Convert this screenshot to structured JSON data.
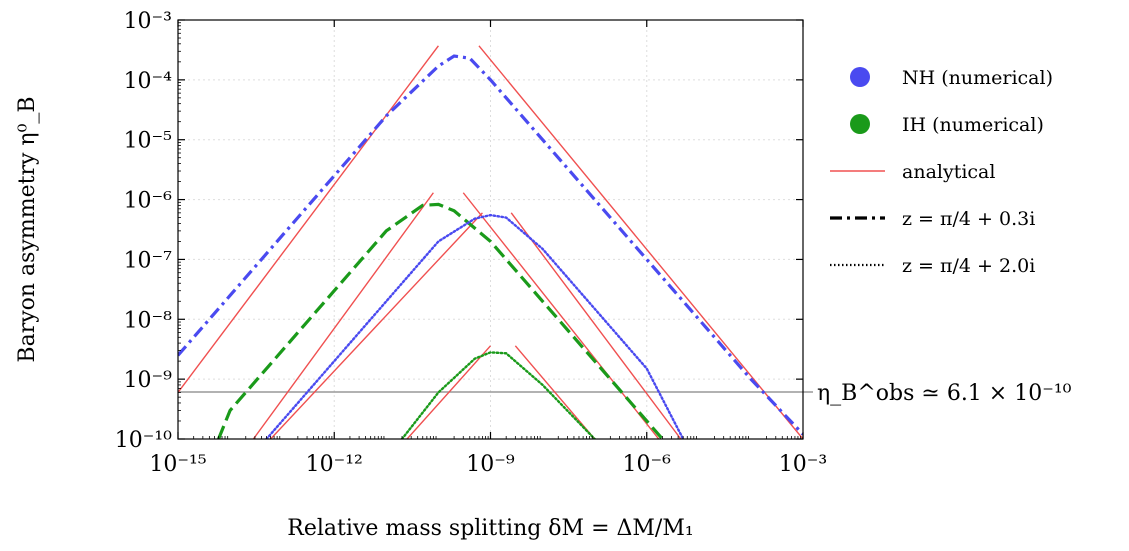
{
  "chart_data": {
    "type": "line",
    "xlabel": "Relative mass splitting δM = ΔM/M₁",
    "ylabel": "Baryon asymmetry η⁰_B",
    "x_scale": "log",
    "y_scale": "log",
    "xlim": [
      1e-15,
      0.001
    ],
    "ylim": [
      1e-10,
      0.001
    ],
    "x_ticks": [
      {
        "value": 1e-15,
        "label": "10⁻¹⁵"
      },
      {
        "value": 1e-12,
        "label": "10⁻¹²"
      },
      {
        "value": 1e-09,
        "label": "10⁻⁹"
      },
      {
        "value": 1e-06,
        "label": "10⁻⁶"
      },
      {
        "value": 0.001,
        "label": "10⁻³"
      }
    ],
    "y_ticks": [
      {
        "value": 1e-10,
        "label": "10⁻¹⁰"
      },
      {
        "value": 1e-09,
        "label": "10⁻⁹"
      },
      {
        "value": 1e-08,
        "label": "10⁻⁸"
      },
      {
        "value": 1e-07,
        "label": "10⁻⁷"
      },
      {
        "value": 1e-06,
        "label": "10⁻⁶"
      },
      {
        "value": 1e-05,
        "label": "10⁻⁵"
      },
      {
        "value": 0.0001,
        "label": "10⁻⁴"
      },
      {
        "value": 0.001,
        "label": "10⁻³"
      }
    ],
    "grid": true,
    "legend_position": "right",
    "colors": {
      "nh": "#4a4af0",
      "ih": "#1a9a1a",
      "analytical": "#f05050",
      "reference": "#999999"
    },
    "reference_line": {
      "y": 6.1e-10,
      "label": "η_B^obs ≃ 6.1 × 10⁻¹⁰"
    },
    "series": [
      {
        "name": "NH (numerical), z = π/4 + 0.3i",
        "style": "dashdot",
        "color": "#4a4af0",
        "points": [
          [
            1e-15,
            2.5e-09
          ],
          [
            1e-14,
            2.5e-08
          ],
          [
            1e-13,
            2.5e-07
          ],
          [
            1e-12,
            2.5e-06
          ],
          [
            1e-11,
            2.5e-05
          ],
          [
            1e-10,
            0.00017
          ],
          [
            2e-10,
            0.00025
          ],
          [
            4e-10,
            0.00023
          ],
          [
            1e-09,
            0.0001
          ],
          [
            1e-08,
            1e-05
          ],
          [
            1e-07,
            1e-06
          ],
          [
            1e-06,
            1e-07
          ],
          [
            1e-05,
            1e-08
          ],
          [
            0.0001,
            1e-09
          ],
          [
            0.001,
            1.2e-10
          ]
        ]
      },
      {
        "name": "IH (numerical), z = π/4 + 0.3i",
        "style": "dashed",
        "color": "#1a9a1a",
        "points": [
          [
            6e-15,
            1e-10
          ],
          [
            1e-14,
            3e-10
          ],
          [
            1e-13,
            3e-09
          ],
          [
            1e-12,
            3e-08
          ],
          [
            1e-11,
            3e-07
          ],
          [
            5e-11,
            8e-07
          ],
          [
            1e-10,
            8.3e-07
          ],
          [
            2e-10,
            6.5e-07
          ],
          [
            1e-09,
            2e-07
          ],
          [
            1e-08,
            2e-08
          ],
          [
            1e-07,
            2e-09
          ],
          [
            1e-06,
            2e-10
          ],
          [
            2e-06,
            1e-10
          ]
        ]
      },
      {
        "name": "NH (numerical), z = π/4 + 2.0i",
        "style": "dotted",
        "color": "#4a4af0",
        "points": [
          [
            5e-14,
            1e-10
          ],
          [
            1e-13,
            2e-10
          ],
          [
            1e-12,
            2e-09
          ],
          [
            1e-11,
            2e-08
          ],
          [
            1e-10,
            2e-07
          ],
          [
            5e-10,
            4.8e-07
          ],
          [
            1e-09,
            5.5e-07
          ],
          [
            2e-09,
            5e-07
          ],
          [
            1e-08,
            1.5e-07
          ],
          [
            1e-07,
            1.5e-08
          ],
          [
            1e-06,
            1.5e-09
          ],
          [
            5e-06,
            1e-10
          ]
        ]
      },
      {
        "name": "IH (numerical), z = π/4 + 2.0i",
        "style": "dotted",
        "color": "#1a9a1a",
        "points": [
          [
            2e-11,
            1e-10
          ],
          [
            1e-10,
            6e-10
          ],
          [
            5e-10,
            2.2e-09
          ],
          [
            1e-09,
            2.8e-09
          ],
          [
            2e-09,
            2.7e-09
          ],
          [
            1e-08,
            8e-10
          ],
          [
            1e-07,
            1e-10
          ]
        ]
      }
    ],
    "analytical_segments": [
      {
        "points": [
          [
            1e-15,
            6e-10
          ],
          [
            1e-10,
            0.00037
          ]
        ]
      },
      {
        "points": [
          [
            6e-10,
            0.00037
          ],
          [
            0.001,
            1e-10
          ]
        ]
      },
      {
        "points": [
          [
            2.8e-14,
            1e-10
          ],
          [
            8e-11,
            1.3e-06
          ]
        ]
      },
      {
        "points": [
          [
            3e-10,
            1.3e-06
          ],
          [
            1.7e-06,
            1e-10
          ]
        ]
      },
      {
        "points": [
          [
            6e-14,
            1e-10
          ],
          [
            7e-10,
            6e-07
          ]
        ]
      },
      {
        "points": [
          [
            2.5e-09,
            6e-07
          ],
          [
            4.5e-06,
            1e-10
          ]
        ]
      },
      {
        "points": [
          [
            2.5e-11,
            1e-10
          ],
          [
            1e-09,
            3.6e-09
          ]
        ]
      },
      {
        "points": [
          [
            3e-09,
            3.6e-09
          ],
          [
            1e-07,
            1e-10
          ]
        ]
      }
    ]
  },
  "legend": [
    {
      "kind": "dot",
      "color": "#4a4af0",
      "label": "NH   (numerical)"
    },
    {
      "kind": "dot",
      "color": "#1a9a1a",
      "label": "IH   (numerical)"
    },
    {
      "kind": "solid",
      "color": "#f05050",
      "label": "analytical"
    },
    {
      "kind": "dashdot",
      "color": "#000000",
      "label": "z = π/4 + 0.3i"
    },
    {
      "kind": "dotted",
      "color": "#000000",
      "label": "z = π/4 + 2.0i"
    }
  ]
}
